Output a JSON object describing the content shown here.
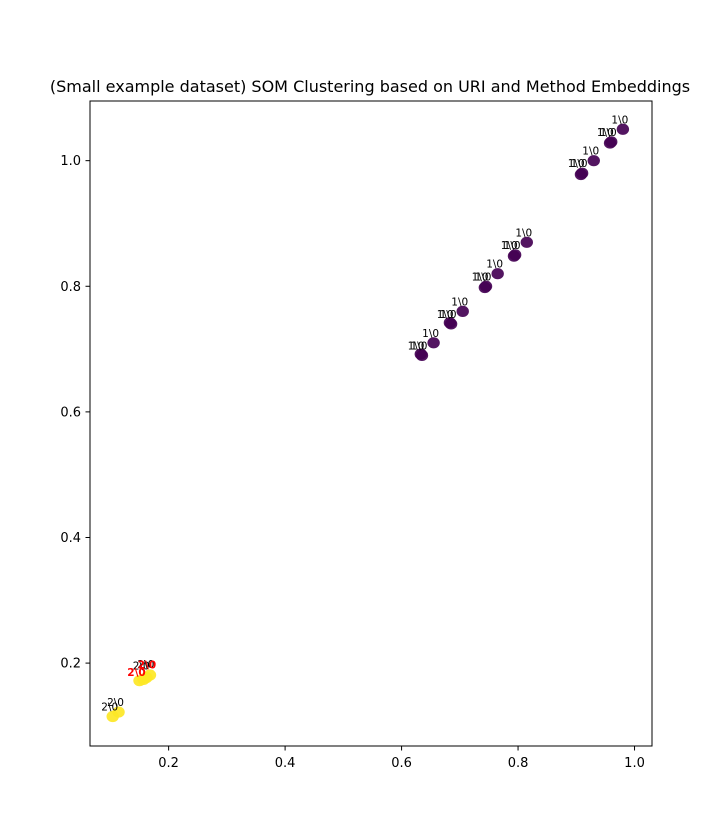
{
  "chart_data": {
    "type": "scatter",
    "title": "(Small example dataset) SOM Clustering based on URI and Method Embeddings",
    "xlabel": "",
    "ylabel": "",
    "xlim": [
      0.065,
      1.03
    ],
    "ylim": [
      0.068,
      1.095
    ],
    "xticks": [
      0.2,
      0.4,
      0.6,
      0.8,
      1.0
    ],
    "yticks": [
      0.2,
      0.4,
      0.6,
      0.8,
      1.0
    ],
    "xtick_labels": [
      "0.2",
      "0.4",
      "0.6",
      "0.8",
      "1.0"
    ],
    "ytick_labels": [
      "0.2",
      "0.4",
      "0.6",
      "0.8",
      "1.0"
    ],
    "grid": false,
    "colormap": {
      "cluster_1": "#440154",
      "cluster_2": "#fde725"
    },
    "label_colors": {
      "normal": "#000000",
      "highlight": "#ff0000"
    },
    "points": [
      {
        "x": 0.91,
        "y": 0.98,
        "cluster": 1,
        "label": "1\\0"
      },
      {
        "x": 0.908,
        "y": 0.978,
        "cluster": 1,
        "label": "1\\0"
      },
      {
        "x": 0.93,
        "y": 1.0,
        "cluster": 1,
        "label": "1\\0"
      },
      {
        "x": 0.96,
        "y": 1.03,
        "cluster": 1,
        "label": "1\\0"
      },
      {
        "x": 0.958,
        "y": 1.028,
        "cluster": 1,
        "label": "1\\0"
      },
      {
        "x": 0.98,
        "y": 1.05,
        "cluster": 1,
        "label": "1\\0"
      },
      {
        "x": 0.795,
        "y": 0.85,
        "cluster": 1,
        "label": "1\\0"
      },
      {
        "x": 0.793,
        "y": 0.848,
        "cluster": 1,
        "label": "1\\0"
      },
      {
        "x": 0.815,
        "y": 0.87,
        "cluster": 1,
        "label": "1\\0"
      },
      {
        "x": 0.745,
        "y": 0.8,
        "cluster": 1,
        "label": "1\\0"
      },
      {
        "x": 0.743,
        "y": 0.798,
        "cluster": 1,
        "label": "1\\0"
      },
      {
        "x": 0.765,
        "y": 0.82,
        "cluster": 1,
        "label": "1\\0"
      },
      {
        "x": 0.685,
        "y": 0.74,
        "cluster": 1,
        "label": "1\\0"
      },
      {
        "x": 0.683,
        "y": 0.742,
        "cluster": 1,
        "label": "1\\0"
      },
      {
        "x": 0.705,
        "y": 0.76,
        "cluster": 1,
        "label": "1\\0"
      },
      {
        "x": 0.635,
        "y": 0.69,
        "cluster": 1,
        "label": "1\\0"
      },
      {
        "x": 0.633,
        "y": 0.692,
        "cluster": 1,
        "label": "1\\0"
      },
      {
        "x": 0.655,
        "y": 0.71,
        "cluster": 1,
        "label": "1\\0"
      },
      {
        "x": 0.104,
        "y": 0.115,
        "cluster": 2,
        "label": "2\\0"
      },
      {
        "x": 0.114,
        "y": 0.122,
        "cluster": 2,
        "label": "2\\0"
      },
      {
        "x": 0.15,
        "y": 0.172,
        "cluster": 2,
        "label": "2\\0"
      },
      {
        "x": 0.157,
        "y": 0.174,
        "cluster": 2,
        "label": "2\\0"
      },
      {
        "x": 0.162,
        "y": 0.177,
        "cluster": 2,
        "label": "2\\0"
      },
      {
        "x": 0.168,
        "y": 0.181,
        "cluster": 2,
        "label": "2\\0"
      }
    ],
    "annotations": [
      {
        "text": "1\\0",
        "x": 0.91,
        "y": 0.98,
        "color": "normal"
      },
      {
        "text": "1\\0",
        "x": 0.905,
        "y": 0.98,
        "color": "normal"
      },
      {
        "text": "1\\0",
        "x": 0.93,
        "y": 1.0,
        "color": "normal"
      },
      {
        "text": "1\\0",
        "x": 0.96,
        "y": 1.03,
        "color": "normal"
      },
      {
        "text": "1\\0",
        "x": 0.955,
        "y": 1.03,
        "color": "normal"
      },
      {
        "text": "1\\0",
        "x": 0.98,
        "y": 1.05,
        "color": "normal"
      },
      {
        "text": "1\\0",
        "x": 0.795,
        "y": 0.85,
        "color": "normal"
      },
      {
        "text": "1\\0",
        "x": 0.79,
        "y": 0.85,
        "color": "normal"
      },
      {
        "text": "1\\0",
        "x": 0.815,
        "y": 0.87,
        "color": "normal"
      },
      {
        "text": "1\\0",
        "x": 0.745,
        "y": 0.8,
        "color": "normal"
      },
      {
        "text": "1\\0",
        "x": 0.74,
        "y": 0.8,
        "color": "normal"
      },
      {
        "text": "1\\0",
        "x": 0.765,
        "y": 0.82,
        "color": "normal"
      },
      {
        "text": "1\\0",
        "x": 0.685,
        "y": 0.74,
        "color": "normal"
      },
      {
        "text": "1\\0",
        "x": 0.68,
        "y": 0.74,
        "color": "normal"
      },
      {
        "text": "1\\0",
        "x": 0.705,
        "y": 0.76,
        "color": "normal"
      },
      {
        "text": "1\\0",
        "x": 0.635,
        "y": 0.69,
        "color": "normal"
      },
      {
        "text": "1\\0",
        "x": 0.63,
        "y": 0.69,
        "color": "normal"
      },
      {
        "text": "1\\0",
        "x": 0.655,
        "y": 0.71,
        "color": "normal"
      },
      {
        "text": "2\\0",
        "x": 0.104,
        "y": 0.115,
        "color": "normal"
      },
      {
        "text": "2\\0",
        "x": 0.114,
        "y": 0.122,
        "color": "normal"
      },
      {
        "text": "2\\0",
        "x": 0.158,
        "y": 0.18,
        "color": "normal"
      },
      {
        "text": "2\\0",
        "x": 0.166,
        "y": 0.183,
        "color": "normal"
      },
      {
        "text": "2\\0",
        "x": 0.15,
        "y": 0.17,
        "color": "highlight"
      },
      {
        "text": "2\\0",
        "x": 0.168,
        "y": 0.182,
        "color": "highlight"
      }
    ]
  }
}
